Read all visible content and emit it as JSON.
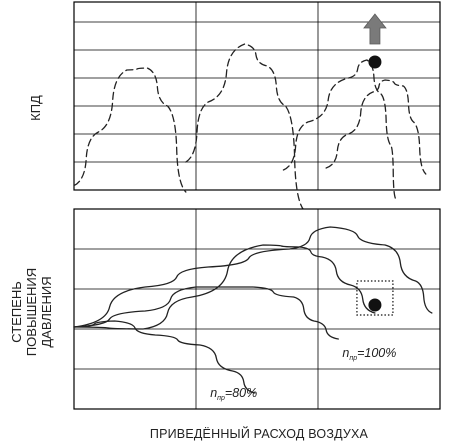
{
  "chart_data": [
    {
      "type": "line",
      "panel": "efficiency",
      "ylabel": "КПД",
      "grid": true,
      "line_style": "dashed",
      "series": [
        {
          "points": [
            [
              0,
              0.11
            ],
            [
              1.2,
              1.45
            ],
            [
              2.6,
              3.0
            ],
            [
              3.6,
              3.05
            ],
            [
              4.6,
              2.1
            ],
            [
              5.5,
              -0.05
            ]
          ]
        },
        {
          "points": [
            [
              5.5,
              0.7
            ],
            [
              6.6,
              2.2
            ],
            [
              8.4,
              3.65
            ],
            [
              9.5,
              3.1
            ],
            [
              10.4,
              2.1
            ],
            [
              11.3,
              -0.5
            ]
          ]
        },
        {
          "points": [
            [
              10.3,
              0.5
            ],
            [
              11.5,
              1.7
            ],
            [
              13.5,
              2.8
            ],
            [
              14.4,
              3.25
            ],
            [
              15.1,
              2.4
            ],
            [
              15.6,
              1.1
            ],
            [
              15.8,
              -0.2
            ]
          ]
        },
        {
          "points": [
            [
              12.4,
              0.55
            ],
            [
              13.5,
              1.4
            ],
            [
              14.7,
              2.45
            ],
            [
              15.3,
              2.75
            ],
            [
              16.2,
              2.6
            ],
            [
              16.7,
              1.7
            ],
            [
              17.3,
              0.4
            ]
          ]
        }
      ],
      "markers": [
        {
          "x": 14.8,
          "y": 3.2,
          "shape": "dot"
        },
        {
          "x": 14.8,
          "y": 4.05,
          "shape": "arrow-up"
        }
      ]
    },
    {
      "type": "line",
      "panel": "pressure-ratio",
      "ylabel": [
        "СТЕПЕНЬ",
        "ПОВЫШЕНИЯ",
        "ДАВЛЕНИЯ"
      ],
      "xlabel": "ПРИВЕДЁННЫЙ РАСХОД ВОЗДУХА",
      "grid": true,
      "line_style": "solid",
      "series": [
        {
          "points": [
            [
              0,
              2.05
            ],
            [
              3.5,
              3.05
            ],
            [
              6.6,
              3.55
            ],
            [
              10.6,
              4.0
            ],
            [
              12.6,
              4.55
            ],
            [
              15.3,
              4.1
            ],
            [
              16.8,
              3.2
            ],
            [
              17.6,
              2.4
            ]
          ]
        },
        {
          "points": [
            [
              0,
              2.05
            ],
            [
              3.4,
              2.0
            ],
            [
              5.8,
              2.8
            ],
            [
              9.3,
              4.1
            ],
            [
              11.1,
              4.05
            ],
            [
              12.2,
              3.8
            ],
            [
              13.6,
              3.1
            ],
            [
              14.8,
              2.4
            ]
          ]
        },
        {
          "points": [
            [
              0,
              2.05
            ],
            [
              3.5,
              2.45
            ],
            [
              6.0,
              3.05
            ],
            [
              8.8,
              3.05
            ],
            [
              10.8,
              2.8
            ],
            [
              11.8,
              2.2
            ],
            [
              13.0,
              1.75
            ]
          ]
        },
        {
          "points": [
            [
              0,
              2.05
            ],
            [
              2.0,
              2.2
            ],
            [
              4.0,
              1.85
            ],
            [
              6.2,
              1.6
            ],
            [
              7.8,
              0.95
            ],
            [
              8.9,
              0.4
            ]
          ]
        }
      ],
      "markers": [
        {
          "x": 14.8,
          "y": 2.6,
          "shape": "dot"
        },
        {
          "x": 14.8,
          "y": 2.8,
          "shape": "dotted-square"
        }
      ],
      "annotations": [
        {
          "text": "=100%",
          "prefix": "n",
          "subscript": "пр",
          "x": 13.2,
          "y": 1.3
        },
        {
          "text": "=80%",
          "prefix": "n",
          "subscript": "пр",
          "x": 6.7,
          "y": 0.3
        }
      ]
    }
  ]
}
